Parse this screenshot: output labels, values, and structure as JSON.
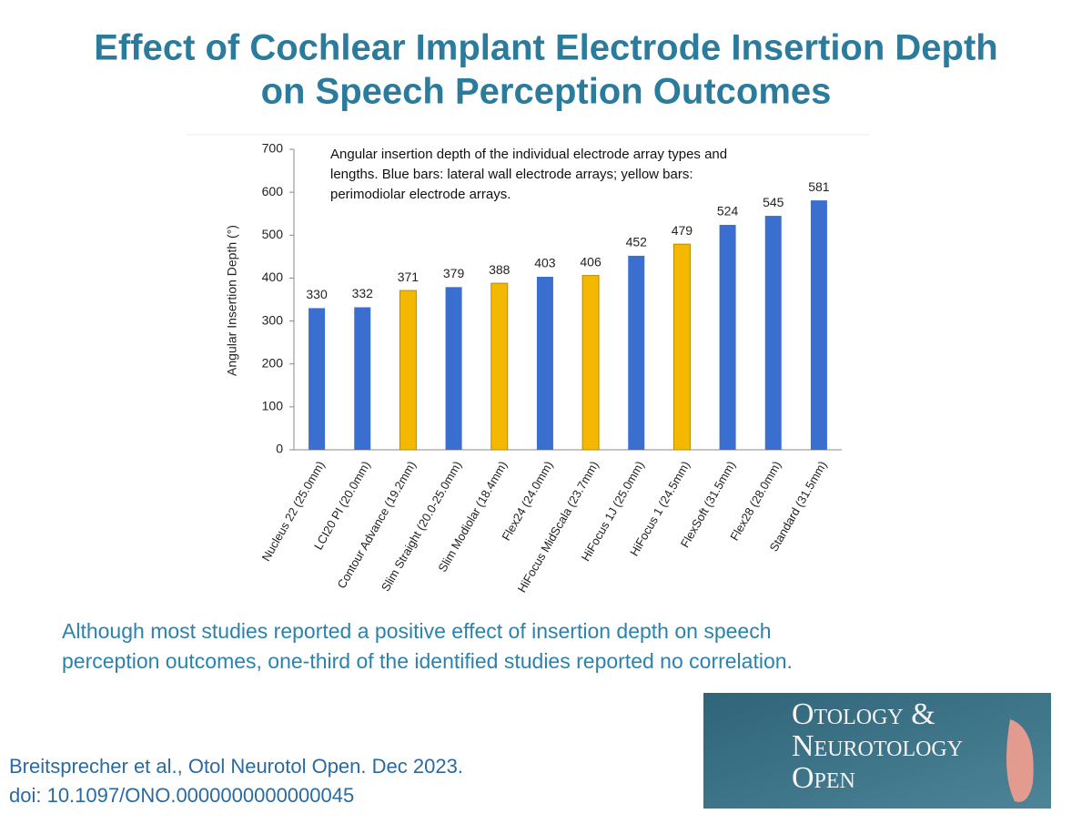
{
  "title": [
    "Effect of Cochlear Implant Electrode Insertion Depth",
    "on Speech Perception Outcomes"
  ],
  "chart_data": {
    "type": "bar",
    "annotation": [
      "Angular insertion depth of the individual electrode array types and",
      "lengths. Blue bars: lateral wall electrode arrays; yellow bars:",
      "perimodiolar electrode arrays."
    ],
    "y_label": "Angular Insertion Depth (°)",
    "categories": [
      "Nucleus 22 (25.0mm)",
      "LCI20 PI (20.0mm)",
      "Contour Advance (19.2mm)",
      "Slim Straight (20.0-25.0mm)",
      "Slim Modiolar (18.4mm)",
      "Flex24 (24.0mm)",
      "HiFocus MidScala (23.7mm)",
      "HiFocus 1J (25.0mm)",
      "HiFocus 1 (24.5mm)",
      "FlexSoft (31.5mm)",
      "Flex28 (28.0mm)",
      "Standard (31.5mm)"
    ],
    "values": [
      330,
      332,
      371,
      379,
      388,
      403,
      406,
      452,
      479,
      524,
      545,
      581
    ],
    "colors": [
      "#3a6fd0",
      "#3a6fd0",
      "#f5b800",
      "#3a6fd0",
      "#f5b800",
      "#3a6fd0",
      "#f5b800",
      "#3a6fd0",
      "#f5b800",
      "#3a6fd0",
      "#3a6fd0",
      "#3a6fd0"
    ],
    "ylim": [
      0,
      700
    ],
    "yticks": [
      0,
      100,
      200,
      300,
      400,
      500,
      600,
      700
    ],
    "grid": false
  },
  "summary": [
    "Although most studies reported a positive effect of insertion depth on speech",
    "perception outcomes, one-third of the identified studies reported no correlation."
  ],
  "citation": [
    "Breitsprecher et al., Otol Neurotol Open. Dec 2023.",
    "doi: 10.1097/ONO.0000000000000045"
  ],
  "logo": [
    "Otology &",
    "Neurotology",
    "Open"
  ]
}
